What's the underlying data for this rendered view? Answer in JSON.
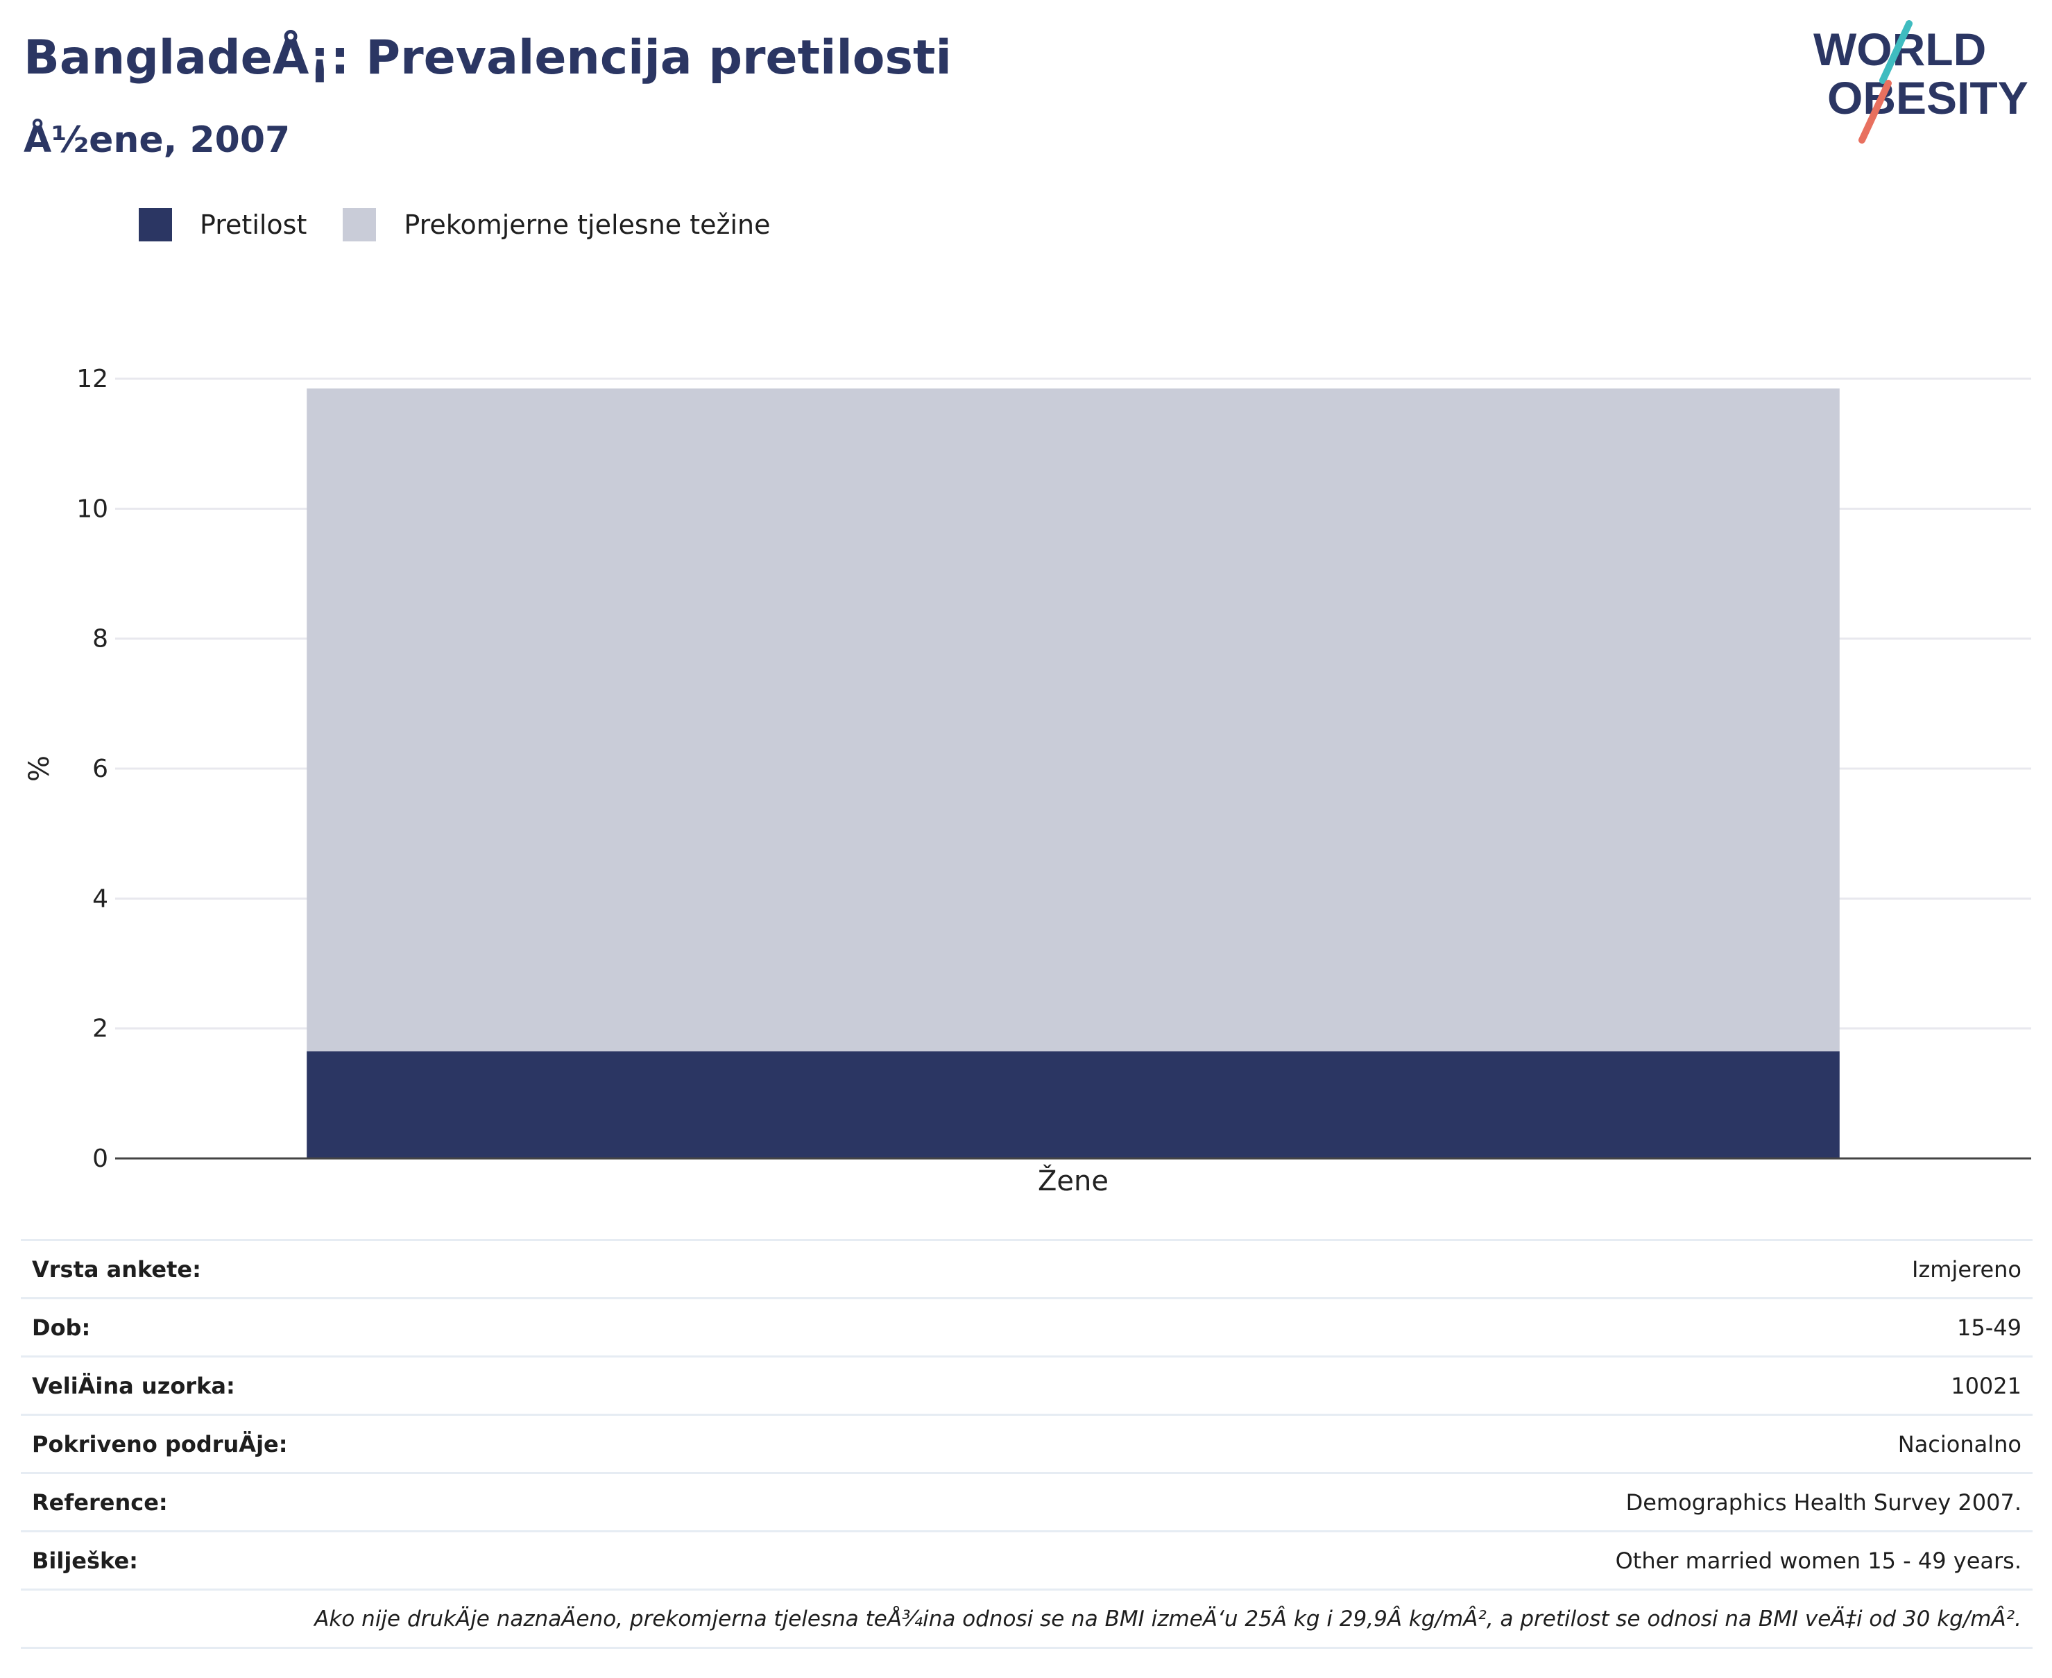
{
  "header": {
    "title": "BangladeÅ¡: Prevalencija pretilosti",
    "subtitle": "Å½ene, 2007"
  },
  "logo": {
    "line1": "WORLD",
    "line2": "OBESITY",
    "colors": {
      "text": "#2b3663",
      "teal": "#3fbcc0",
      "coral": "#e8705f"
    }
  },
  "legend": [
    {
      "label": "Pretilost",
      "color": "#2b3663"
    },
    {
      "label": "Prekomjerne tjelesne težine",
      "color": "#c9ccd8"
    }
  ],
  "chart_data": {
    "type": "bar",
    "stacked": true,
    "categories": [
      "Žene"
    ],
    "series": [
      {
        "name": "Pretilost",
        "values": [
          1.65
        ],
        "color": "#2b3663"
      },
      {
        "name": "Prekomjerne tjelesne težine",
        "values": [
          10.2
        ],
        "color": "#c9ccd8"
      }
    ],
    "ylabel": "%",
    "xlabel": "",
    "ylim": [
      0,
      12
    ],
    "yticks": [
      0,
      2,
      4,
      6,
      8,
      10,
      12
    ],
    "grid": true,
    "legend_position": "top-left"
  },
  "info": {
    "rows": [
      {
        "label": "Vrsta ankete:",
        "value": "Izmjereno"
      },
      {
        "label": "Dob:",
        "value": "15-49"
      },
      {
        "label": "VeliÄ\u001fina uzorka:",
        "value": "10021"
      },
      {
        "label": "Pokriveno podruÄ\u001fje:",
        "value": "Nacionalno"
      },
      {
        "label": "Reference:",
        "value": "Demographics Health Survey 2007."
      },
      {
        "label": "Bilješke:",
        "value": "Other married women 15 - 49 years."
      }
    ],
    "footnote": "Ako nije drukÄ\u001fje naznaÄ\u001feno, prekomjerna tjelesna teÅ¾ina odnosi se na BMI izmeÄ‘u 25Â kg i 29,9Â kg/mÂ², a pretilost se odnosi na BMI veÄ‡i od 30 kg/mÂ²."
  }
}
